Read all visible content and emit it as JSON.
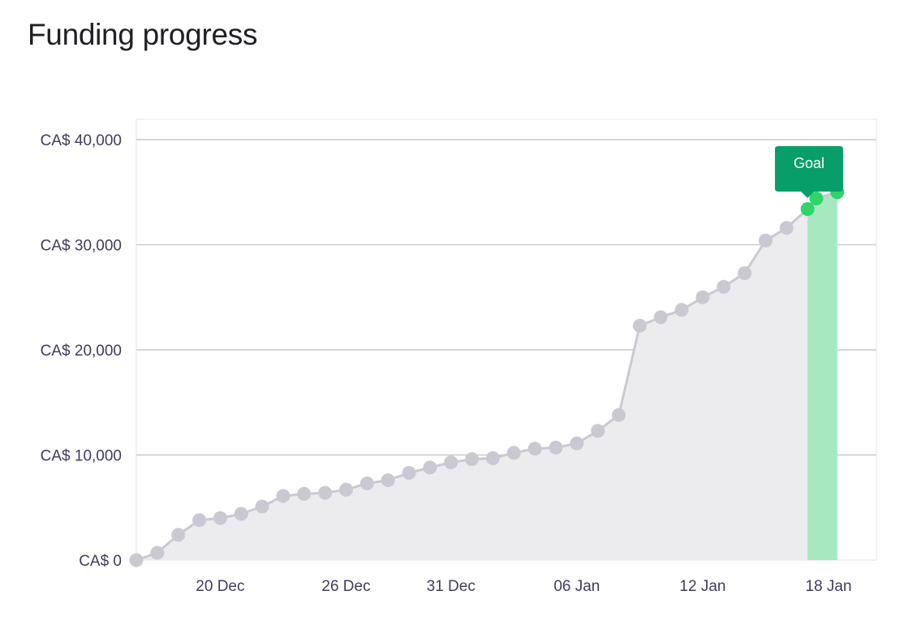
{
  "page": {
    "title": "Funding progress"
  },
  "chart_data": {
    "type": "line",
    "title": "Funding progress",
    "xlabel": "",
    "ylabel": "",
    "x_range": [
      "2023-12-16",
      "2024-01-18"
    ],
    "ylim": [
      0,
      42000
    ],
    "y_ticks": [
      {
        "value": 0,
        "label": "CA$ 0"
      },
      {
        "value": 10000,
        "label": "CA$ 10,000"
      },
      {
        "value": 20000,
        "label": "CA$ 20,000"
      },
      {
        "value": 30000,
        "label": "CA$ 30,000"
      },
      {
        "value": 40000,
        "label": "CA$ 40,000"
      }
    ],
    "x_ticks": [
      {
        "date": "2023-12-20",
        "label": "20 Dec"
      },
      {
        "date": "2023-12-26",
        "label": "26 Dec"
      },
      {
        "date": "2023-12-31",
        "label": "31 Dec"
      },
      {
        "date": "2024-01-06",
        "label": "06 Jan"
      },
      {
        "date": "2024-01-12",
        "label": "12 Jan"
      },
      {
        "date": "2024-01-18",
        "label": "18 Jan"
      }
    ],
    "grid": true,
    "series": [
      {
        "points": [
          {
            "x": "2023-12-16",
            "y": 0
          },
          {
            "x": "2023-12-17",
            "y": 700
          },
          {
            "x": "2023-12-18",
            "y": 2400
          },
          {
            "x": "2023-12-19",
            "y": 3800
          },
          {
            "x": "2023-12-20",
            "y": 4000
          },
          {
            "x": "2023-12-21",
            "y": 4400
          },
          {
            "x": "2023-12-22",
            "y": 5100
          },
          {
            "x": "2023-12-23",
            "y": 6100
          },
          {
            "x": "2023-12-24",
            "y": 6300
          },
          {
            "x": "2023-12-25",
            "y": 6400
          },
          {
            "x": "2023-12-26",
            "y": 6700
          },
          {
            "x": "2023-12-27",
            "y": 7300
          },
          {
            "x": "2023-12-28",
            "y": 7600
          },
          {
            "x": "2023-12-29",
            "y": 8300
          },
          {
            "x": "2023-12-30",
            "y": 8800
          },
          {
            "x": "2023-12-31",
            "y": 9300
          },
          {
            "x": "2024-01-01",
            "y": 9600
          },
          {
            "x": "2024-01-02",
            "y": 9700
          },
          {
            "x": "2024-01-03",
            "y": 10200
          },
          {
            "x": "2024-01-04",
            "y": 10600
          },
          {
            "x": "2024-01-05",
            "y": 10700
          },
          {
            "x": "2024-01-06",
            "y": 11100
          },
          {
            "x": "2024-01-07",
            "y": 12300
          },
          {
            "x": "2024-01-08",
            "y": 13800
          },
          {
            "x": "2024-01-09",
            "y": 22300
          },
          {
            "x": "2024-01-10",
            "y": 23100
          },
          {
            "x": "2024-01-11",
            "y": 23800
          },
          {
            "x": "2024-01-12",
            "y": 25000
          },
          {
            "x": "2024-01-13",
            "y": 26000
          },
          {
            "x": "2024-01-14",
            "y": 27300
          },
          {
            "x": "2024-01-15",
            "y": 30400
          },
          {
            "x": "2024-01-16",
            "y": 31600
          },
          {
            "x": "2024-01-17",
            "y": 33400
          },
          {
            "x": "2024-01-17T10:00",
            "y": 34400
          },
          {
            "x": "2024-01-18T10:00",
            "y": 35000
          }
        ]
      }
    ],
    "goal": {
      "label": "Goal",
      "reached_from": "2024-01-17",
      "reached_to": "2024-01-18T10:00"
    },
    "colors": {
      "line": "#cac9d1",
      "area": "#ececef",
      "grid": "#c9c9c9",
      "axis_box": "#e4e4e6",
      "point": "#cac9d1",
      "goal_point": "#2fd46a",
      "goal_band": "#a8e8c0",
      "goal_badge": "#089e6a"
    }
  }
}
